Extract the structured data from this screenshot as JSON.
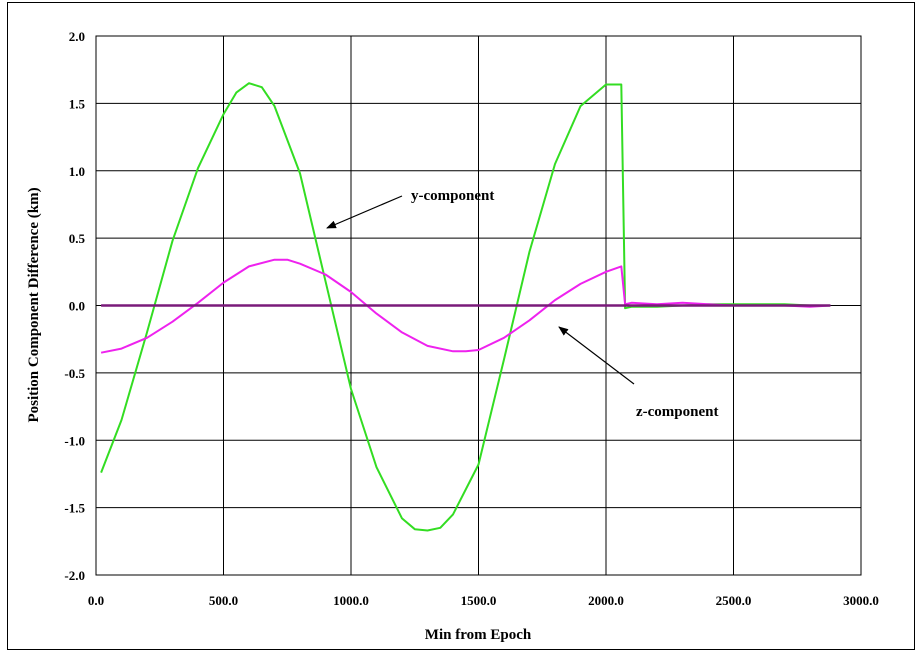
{
  "chart_data": {
    "type": "line",
    "title": "",
    "xlabel": "Min from Epoch",
    "ylabel": "Position Component Difference (km)",
    "xlim": [
      0,
      3000
    ],
    "ylim": [
      -2,
      2
    ],
    "x_ticks": [
      "0.0",
      "500.0",
      "1000.0",
      "1500.0",
      "2000.0",
      "2500.0",
      "3000.0"
    ],
    "y_ticks": [
      "2.0",
      "1.5",
      "1.0",
      "0.5",
      "0.0",
      "-0.5",
      "-1.0",
      "-1.5",
      "-2.0"
    ],
    "grid": true,
    "annotations": [
      {
        "text": "y-component",
        "series": "y"
      },
      {
        "text": "z-component",
        "series": "z"
      }
    ],
    "series": [
      {
        "key": "y",
        "color": "#33dd22",
        "x": [
          20,
          100,
          200,
          300,
          400,
          500,
          550,
          600,
          650,
          700,
          800,
          900,
          1000,
          1100,
          1200,
          1250,
          1300,
          1350,
          1400,
          1500,
          1600,
          1700,
          1800,
          1900,
          2000,
          2020,
          2060,
          2075,
          2100,
          2200,
          2300,
          2400,
          2500,
          2600,
          2700,
          2800,
          2880
        ],
        "values": [
          -1.24,
          -0.85,
          -0.2,
          0.48,
          1.02,
          1.42,
          1.58,
          1.65,
          1.62,
          1.48,
          0.98,
          0.18,
          -0.62,
          -1.2,
          -1.58,
          -1.66,
          -1.67,
          -1.65,
          -1.55,
          -1.18,
          -0.4,
          0.4,
          1.05,
          1.48,
          1.64,
          1.64,
          1.64,
          -0.02,
          -0.01,
          -0.01,
          0.0,
          0.01,
          0.01,
          0.01,
          0.01,
          0.0,
          0.0
        ]
      },
      {
        "key": "z",
        "color": "#ee22ee",
        "x": [
          20,
          100,
          200,
          300,
          400,
          500,
          600,
          700,
          750,
          800,
          900,
          1000,
          1100,
          1200,
          1300,
          1400,
          1450,
          1500,
          1600,
          1700,
          1800,
          1900,
          2000,
          2060,
          2075,
          2100,
          2200,
          2300,
          2400,
          2500,
          2600,
          2700,
          2800,
          2880
        ],
        "values": [
          -0.35,
          -0.32,
          -0.24,
          -0.12,
          0.02,
          0.17,
          0.29,
          0.34,
          0.34,
          0.31,
          0.23,
          0.1,
          -0.06,
          -0.2,
          -0.3,
          -0.34,
          -0.34,
          -0.33,
          -0.24,
          -0.11,
          0.04,
          0.16,
          0.25,
          0.29,
          0.01,
          0.02,
          0.01,
          0.02,
          0.01,
          0.0,
          0.0,
          0.0,
          -0.01,
          0.0
        ]
      },
      {
        "key": "x",
        "color": "#7a1a7a",
        "x": [
          20,
          2880
        ],
        "values": [
          0.0,
          0.0
        ]
      }
    ]
  }
}
